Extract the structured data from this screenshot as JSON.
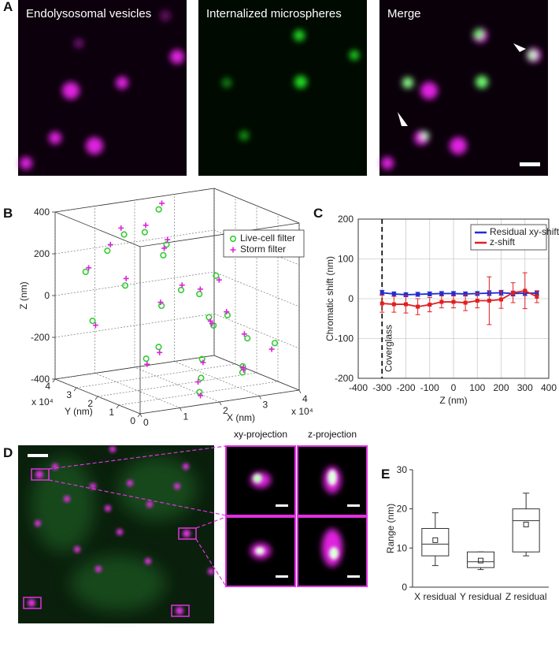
{
  "panel_letters": [
    "A",
    "B",
    "C",
    "D",
    "E"
  ],
  "panel_a_titles": [
    "Endolysosomal vesicles",
    "Internalized microspheres",
    "Merge"
  ],
  "panel_d_titles": [
    "xy-projection",
    "z-projection"
  ],
  "chart_data": [
    {
      "type": "scatter3d",
      "xlabel": "X (nm)",
      "ylabel": "Y (nm)",
      "zlabel": "Z (nm)",
      "multiplier_label": "x 10⁴",
      "xlim": [
        0,
        4
      ],
      "xticks": [
        0,
        1,
        2,
        3,
        4
      ],
      "ylim": [
        0,
        4
      ],
      "yticks": [
        0,
        1,
        2,
        3,
        4
      ],
      "zlim": [
        -400,
        400
      ],
      "zticks": [
        -400,
        -200,
        0,
        200,
        400
      ],
      "grid": true,
      "legend": "upper right",
      "series": [
        {
          "name": "Live-cell filter",
          "color": "#33cc33",
          "marker": "circle",
          "x": [
            0.5,
            1.2,
            2.0,
            2.8,
            3.5,
            1.0,
            1.8,
            2.5,
            3.2,
            0.8,
            1.5,
            2.2,
            3.0,
            3.6,
            0.3,
            1.1,
            2.7,
            3.3,
            1.6,
            2.4,
            0.9,
            2.1,
            3.8,
            1.4,
            2.9
          ],
          "y": [
            3.5,
            3.0,
            2.5,
            2.0,
            1.5,
            1.0,
            0.5,
            3.8,
            3.2,
            2.2,
            1.8,
            1.2,
            0.8,
            0.4,
            2.8,
            3.6,
            1.6,
            2.6,
            0.2,
            3.4,
            1.4,
            2.0,
            3.0,
            2.4,
            0.6
          ],
          "z": [
            120,
            300,
            250,
            -100,
            -200,
            -150,
            -300,
            350,
            -50,
            100,
            0,
            -250,
            -320,
            -180,
            -80,
            200,
            -120,
            60,
            -350,
            150,
            -220,
            50,
            -160,
            330,
            -280
          ]
        },
        {
          "name": "Storm filter",
          "color": "#dd22dd",
          "marker": "plus",
          "x": [
            0.55,
            1.15,
            2.05,
            2.85,
            3.45,
            1.05,
            1.75,
            2.55,
            3.25,
            0.85,
            1.45,
            2.25,
            3.05,
            3.55,
            0.35,
            1.15,
            2.65,
            3.35,
            1.65,
            2.45,
            0.95,
            2.15,
            3.75,
            1.45,
            2.95
          ],
          "y": [
            3.45,
            3.05,
            2.55,
            1.95,
            1.55,
            1.05,
            0.55,
            3.75,
            3.25,
            2.25,
            1.75,
            1.25,
            0.85,
            0.45,
            2.75,
            3.55,
            1.65,
            2.55,
            0.25,
            3.45,
            1.45,
            2.05,
            2.95,
            2.45,
            0.65
          ],
          "z": [
            140,
            330,
            270,
            -130,
            -180,
            -180,
            -320,
            380,
            -30,
            130,
            20,
            -270,
            -300,
            -210,
            -100,
            230,
            -100,
            40,
            -370,
            180,
            -250,
            70,
            -140,
            360,
            -300
          ]
        }
      ]
    },
    {
      "type": "line",
      "xlabel": "Z (nm)",
      "ylabel": "Chromatic shift (nm)",
      "xlim": [
        -400,
        400
      ],
      "xticks": [
        -400,
        -300,
        -200,
        -100,
        0,
        100,
        200,
        300,
        400
      ],
      "ylim": [
        -200,
        200
      ],
      "yticks": [
        -200,
        -100,
        0,
        100,
        200
      ],
      "grid": true,
      "legend": "upper right",
      "vline": -300,
      "annotation": "Coverglass",
      "x": [
        -300,
        -250,
        -200,
        -150,
        -100,
        -50,
        0,
        50,
        100,
        150,
        200,
        250,
        300,
        350
      ],
      "series": [
        {
          "name": "Residual xy-shift",
          "color": "#1f2fd0",
          "values": [
            15,
            12,
            10,
            11,
            12,
            13,
            13,
            12,
            13,
            14,
            15,
            13,
            14,
            14
          ],
          "errors": [
            6,
            5,
            5,
            5,
            5,
            5,
            5,
            5,
            5,
            6,
            6,
            6,
            6,
            5
          ]
        },
        {
          "name": "z-shift",
          "color": "#e02020",
          "values": [
            -12,
            -14,
            -14,
            -20,
            -15,
            -8,
            -8,
            -10,
            -5,
            -5,
            -2,
            15,
            20,
            5
          ],
          "errors": [
            22,
            20,
            22,
            20,
            18,
            15,
            15,
            20,
            18,
            60,
            22,
            25,
            45,
            15
          ]
        }
      ]
    },
    {
      "type": "box",
      "ylabel": "Range (nm)",
      "categories": [
        "X residual",
        "Y residual",
        "Z residual"
      ],
      "ylim": [
        0,
        30
      ],
      "yticks": [
        0,
        10,
        20,
        30
      ],
      "boxes": [
        {
          "whisker_low": 5.5,
          "q1": 8,
          "median": 11,
          "q3": 15,
          "whisker_high": 19,
          "mean": 12
        },
        {
          "whisker_low": 4.5,
          "q1": 5,
          "median": 6.5,
          "q3": 9,
          "whisker_high": 9,
          "mean": 6.8
        },
        {
          "whisker_low": 8,
          "q1": 9,
          "median": 17,
          "q3": 20,
          "whisker_high": 24,
          "mean": 16
        }
      ]
    }
  ]
}
